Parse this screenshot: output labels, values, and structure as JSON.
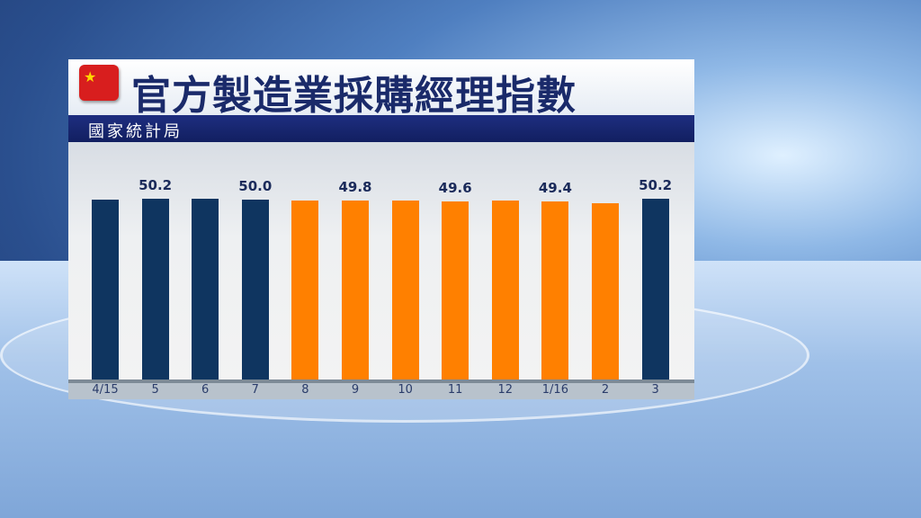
{
  "header": {
    "title": "官方製造業採購經理指數",
    "subtitle": "國家統計局",
    "flag_icon": "china-flag-icon"
  },
  "chart_data": {
    "type": "bar",
    "title": "官方製造業採購經理指數",
    "subtitle": "國家統計局",
    "categories": [
      "4/15",
      "5",
      "6",
      "7",
      "8",
      "9",
      "10",
      "11",
      "12",
      "1/16",
      "2",
      "3"
    ],
    "values": [
      50.1,
      50.2,
      50.2,
      50.0,
      49.7,
      49.8,
      49.8,
      49.6,
      49.7,
      49.4,
      49.0,
      50.2
    ],
    "data_labels": [
      null,
      "50.2",
      null,
      "50.0",
      null,
      "49.8",
      null,
      "49.6",
      null,
      "49.4",
      null,
      "50.2"
    ],
    "colors": [
      "#0f3560",
      "#0f3560",
      "#0f3560",
      "#0f3560",
      "#ff8000",
      "#ff8000",
      "#ff8000",
      "#ff8000",
      "#ff8000",
      "#ff8000",
      "#ff8000",
      "#0f3560"
    ],
    "ylim": [
      0,
      52
    ],
    "grid": false,
    "legend": "none"
  }
}
